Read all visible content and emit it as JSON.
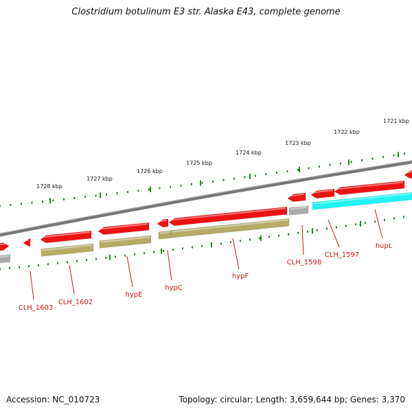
{
  "title": "Clostridium botulinum E3 str. Alaska E43, complete genome",
  "accession": "Accession: NC_010723",
  "topology": "Topology: circular; Length: 3,659,644 bp; Genes: 3,370",
  "colors": {
    "cds_forward": "#ee1111",
    "cds_reverse_olive": "#b5aa66",
    "other_gray": "#aaaaaa",
    "cyan_feature": "#22f2f2",
    "backbone": "#777777",
    "ticks": "#1f8a1f",
    "labels": "#d21111"
  },
  "ruler": [
    {
      "label": "1728 kbp"
    },
    {
      "label": "1727 kbp"
    },
    {
      "label": "1726 kbp"
    },
    {
      "label": "1725 kbp"
    },
    {
      "label": "1724 kbp"
    },
    {
      "label": "1723 kbp"
    },
    {
      "label": "1722 kbp"
    },
    {
      "label": "1721 kbp"
    }
  ],
  "gene_labels": [
    {
      "name": "CLH_1603"
    },
    {
      "name": "CLH_1602"
    },
    {
      "name": "hypE"
    },
    {
      "name": "hypC"
    },
    {
      "name": "hypF"
    },
    {
      "name": "CLH_1598"
    },
    {
      "name": "CLH_1597"
    },
    {
      "name": "hupL"
    }
  ]
}
